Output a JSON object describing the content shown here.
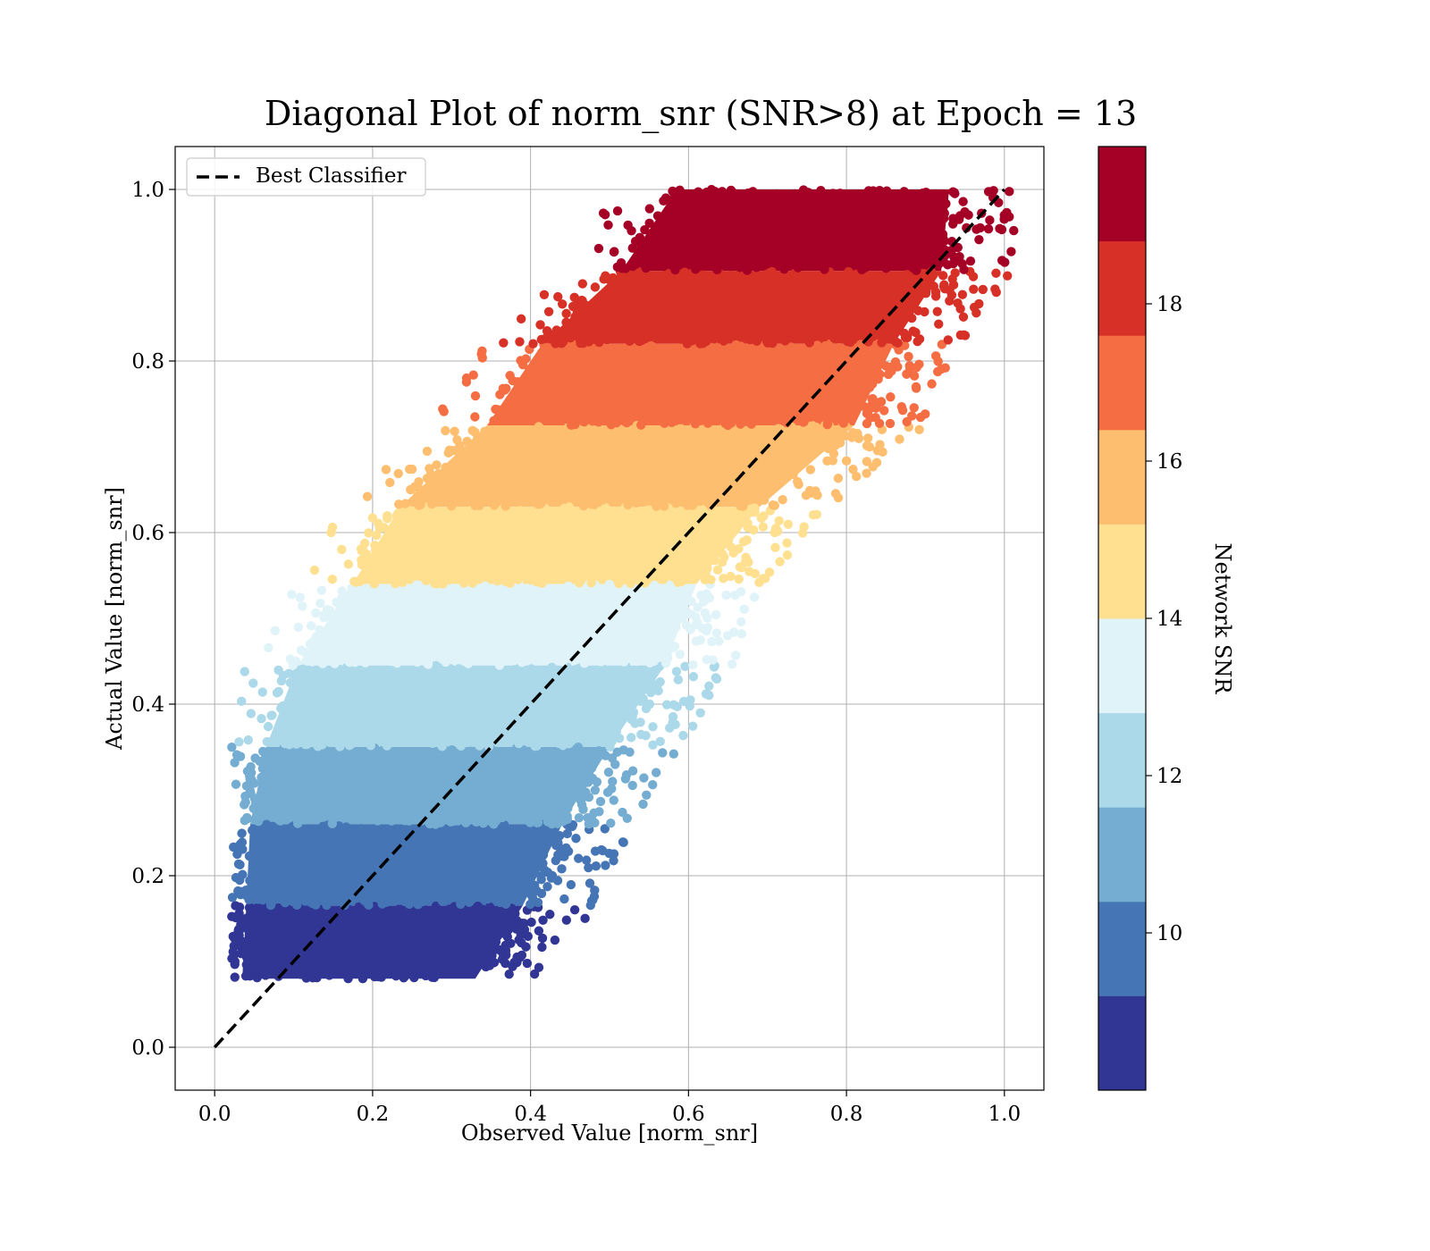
{
  "chart_data": {
    "type": "scatter",
    "title": "Diagonal Plot of norm_snr (SNR>8) at Epoch = 13",
    "xlabel": "Observed Value [norm_snr]",
    "ylabel": "Actual Value [norm_snr]",
    "xlim": [
      -0.05,
      1.05
    ],
    "ylim": [
      -0.05,
      1.05
    ],
    "xticks": [
      "0.0",
      "0.2",
      "0.4",
      "0.6",
      "0.8",
      "1.0"
    ],
    "yticks": [
      "0.0",
      "0.2",
      "0.4",
      "0.6",
      "0.8",
      "1.0"
    ],
    "grid": true,
    "legend": {
      "position": "top-left",
      "entries": [
        "Best Classifier"
      ]
    },
    "reference_line": {
      "name": "Best Classifier",
      "x": [
        0,
        1
      ],
      "y": [
        0,
        1
      ],
      "style": "dashed",
      "color": "#000000"
    },
    "colorbar": {
      "label": "Network SNR",
      "range": [
        8,
        20
      ],
      "ticks": [
        "10",
        "12",
        "14",
        "16",
        "18"
      ],
      "tick_values": [
        10,
        12,
        14,
        16,
        18
      ],
      "colors": [
        "#313695",
        "#4575b4",
        "#74add1",
        "#abd9e9",
        "#e0f3f8",
        "#ffffbf",
        "#fee090",
        "#fdae61",
        "#f46d43",
        "#d73027",
        "#a50026"
      ]
    },
    "bands": [
      {
        "snr_min": 8,
        "snr_max": 9.2,
        "y": [
          0.08,
          0.165
        ],
        "x_start": [
          0.02,
          0.025
        ],
        "x_end": [
          0.35,
          0.41
        ],
        "color": "#313695"
      },
      {
        "snr_min": 9.2,
        "snr_max": 10.4,
        "y": [
          0.165,
          0.26
        ],
        "x_start": [
          0.025,
          0.03
        ],
        "x_end": [
          0.41,
          0.46
        ],
        "color": "#4575b4"
      },
      {
        "snr_min": 10.4,
        "snr_max": 11.6,
        "y": [
          0.26,
          0.35
        ],
        "x_start": [
          0.03,
          0.05
        ],
        "x_end": [
          0.46,
          0.52
        ],
        "color": "#74add1"
      },
      {
        "snr_min": 11.6,
        "snr_max": 12.8,
        "y": [
          0.35,
          0.445
        ],
        "x_start": [
          0.05,
          0.09
        ],
        "x_end": [
          0.52,
          0.59
        ],
        "color": "#abd9e9"
      },
      {
        "snr_min": 12.8,
        "snr_max": 14.0,
        "y": [
          0.445,
          0.54
        ],
        "x_start": [
          0.09,
          0.16
        ],
        "x_end": [
          0.59,
          0.63
        ],
        "color": "#e0f3f8"
      },
      {
        "snr_min": 14.0,
        "snr_max": 15.2,
        "y": [
          0.54,
          0.63
        ],
        "x_start": [
          0.16,
          0.22
        ],
        "x_end": [
          0.63,
          0.71
        ],
        "color": "#fee090"
      },
      {
        "snr_min": 15.2,
        "snr_max": 16.4,
        "y": [
          0.63,
          0.725
        ],
        "x_start": [
          0.22,
          0.33
        ],
        "x_end": [
          0.71,
          0.83
        ],
        "color": "#fdbf6f"
      },
      {
        "snr_min": 16.4,
        "snr_max": 17.6,
        "y": [
          0.725,
          0.82
        ],
        "x_start": [
          0.33,
          0.4
        ],
        "x_end": [
          0.83,
          0.88
        ],
        "color": "#f46d43"
      },
      {
        "snr_min": 17.6,
        "snr_max": 18.8,
        "y": [
          0.82,
          0.905
        ],
        "x_start": [
          0.4,
          0.5
        ],
        "x_end": [
          0.88,
          0.94
        ],
        "color": "#d73027"
      },
      {
        "snr_min": 18.8,
        "snr_max": 20,
        "y": [
          0.905,
          1.0
        ],
        "x_start": [
          0.5,
          0.57
        ],
        "x_end": [
          0.94,
          0.95
        ],
        "color": "#a50026"
      }
    ]
  }
}
